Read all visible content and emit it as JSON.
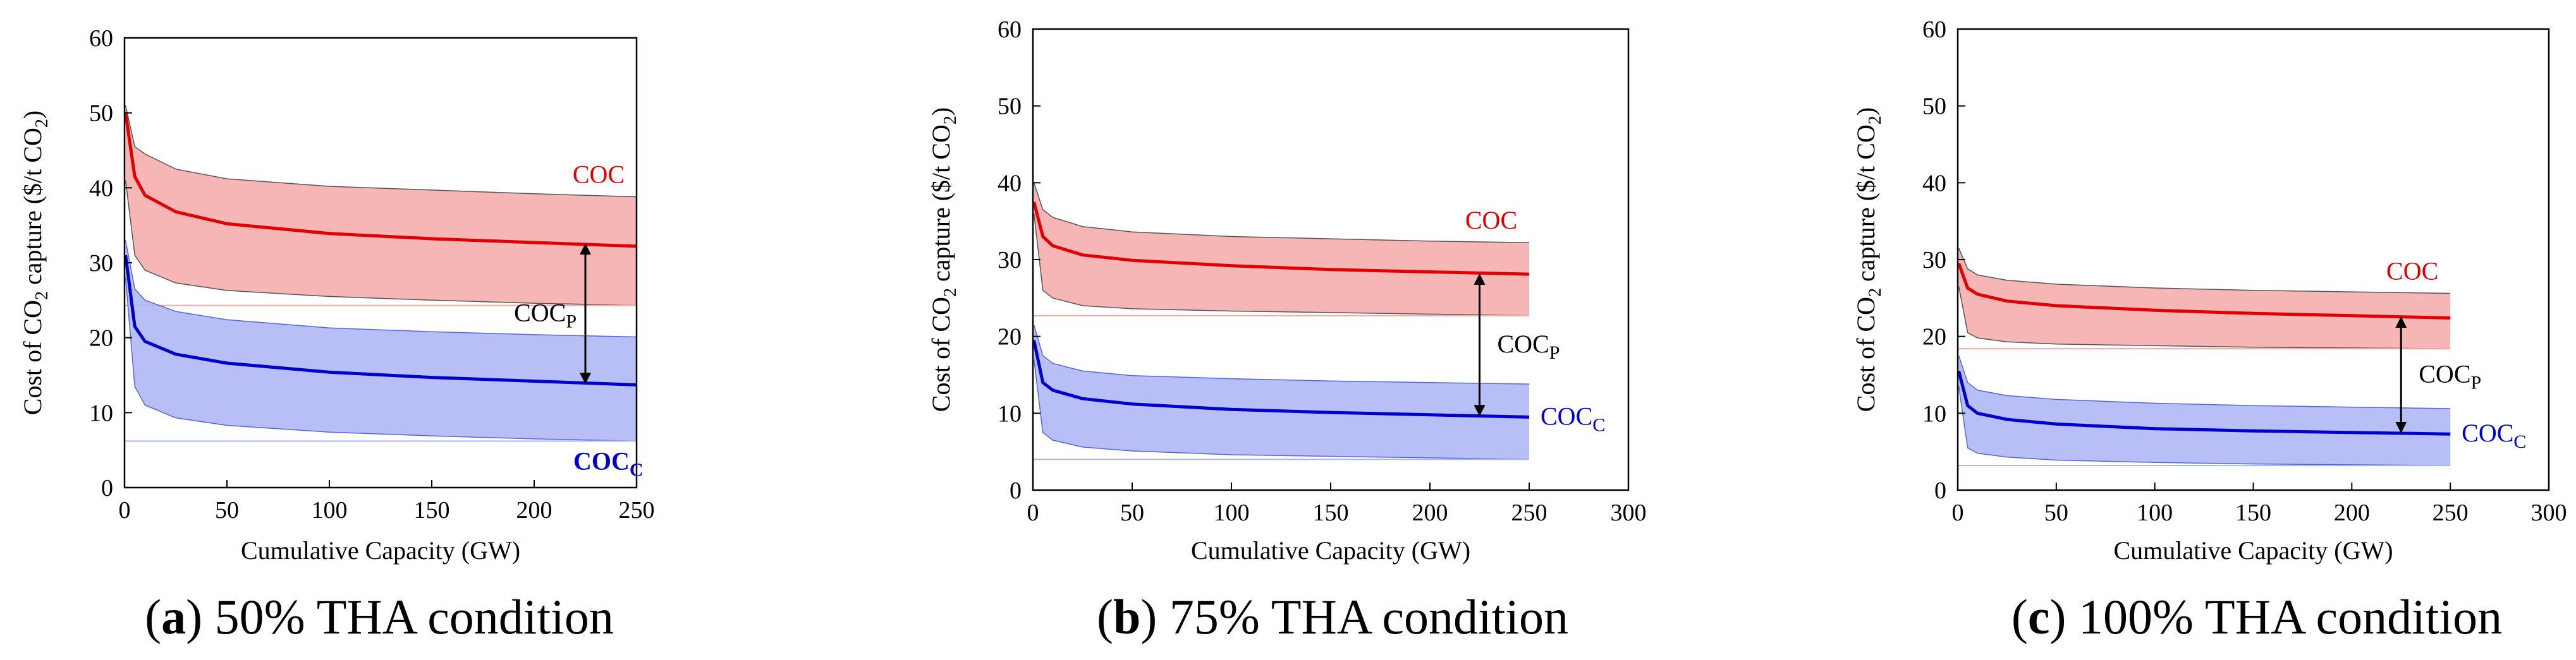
{
  "colors": {
    "coc_line": "#e00000",
    "coc_band": "#f4a9a8",
    "coc_band_edge": "#555555",
    "cocc_line": "#0000cc",
    "cocc_band": "#aab4f4",
    "cocc_band_edge": "#5566dd",
    "arrow": "#000000"
  },
  "chart_data": [
    {
      "type": "line",
      "caption": {
        "letter": "a",
        "text": " 50% THA condition"
      },
      "xlabel": "Cumulative Capacity (GW)",
      "ylabel": "Cost of CO2 capture ($/t CO2)",
      "xlim": [
        0,
        250
      ],
      "ylim": [
        0,
        60
      ],
      "xticks": [
        "0",
        "50",
        "100",
        "150",
        "200",
        "250"
      ],
      "yticks": [
        "0",
        "10",
        "20",
        "30",
        "40",
        "50",
        "60"
      ],
      "series": [
        {
          "name": "COC",
          "subscript": "",
          "bold": false,
          "x": [
            0.5,
            5,
            10,
            25,
            50,
            100,
            150,
            200,
            250
          ],
          "values": [
            50.0,
            41.5,
            39.0,
            36.8,
            35.2,
            33.9,
            33.2,
            32.7,
            32.2
          ],
          "upper": [
            51.0,
            45.5,
            44.5,
            42.5,
            41.2,
            40.2,
            39.7,
            39.2,
            38.8
          ],
          "lower": [
            41.0,
            31.0,
            29.0,
            27.3,
            26.3,
            25.5,
            25.0,
            24.6,
            24.3
          ]
        },
        {
          "name": "COC",
          "subscript": "C",
          "bold": true,
          "x": [
            0.5,
            5,
            10,
            25,
            50,
            100,
            150,
            200,
            250
          ],
          "values": [
            31.0,
            21.5,
            19.5,
            17.8,
            16.6,
            15.4,
            14.7,
            14.2,
            13.7
          ],
          "upper": [
            33.0,
            26.5,
            25.0,
            23.5,
            22.4,
            21.3,
            20.8,
            20.4,
            20.1
          ],
          "lower": [
            28.0,
            13.5,
            11.0,
            9.3,
            8.3,
            7.4,
            6.9,
            6.5,
            6.2
          ]
        }
      ],
      "annotation": {
        "text": "COC",
        "subscript": "P",
        "x": 225,
        "y_from": 32.6,
        "y_to": 13.8
      }
    },
    {
      "type": "line",
      "caption": {
        "letter": "b",
        "text": " 75% THA condition"
      },
      "xlabel": "Cumulative Capacity (GW)",
      "ylabel": "Cost of CO2 capture ($/t CO2)",
      "xlim": [
        0,
        300
      ],
      "ylim": [
        0,
        60
      ],
      "xticks": [
        "0",
        "50",
        "100",
        "150",
        "200",
        "250",
        "300"
      ],
      "yticks": [
        "0",
        "10",
        "20",
        "30",
        "40",
        "50",
        "60"
      ],
      "series": [
        {
          "name": "COC",
          "subscript": "",
          "bold": false,
          "x": [
            0.5,
            5,
            10,
            25,
            50,
            100,
            150,
            200,
            250
          ],
          "values": [
            37.5,
            33.0,
            31.8,
            30.6,
            29.9,
            29.2,
            28.7,
            28.4,
            28.1
          ],
          "upper": [
            40.0,
            36.5,
            35.5,
            34.3,
            33.6,
            33.0,
            32.7,
            32.4,
            32.2
          ],
          "lower": [
            36.0,
            26.0,
            25.0,
            24.0,
            23.6,
            23.3,
            23.1,
            22.9,
            22.7
          ]
        },
        {
          "name": "COC",
          "subscript": "C",
          "bold": false,
          "x": [
            0.5,
            5,
            10,
            25,
            50,
            100,
            150,
            200,
            250
          ],
          "values": [
            19.5,
            14.0,
            13.0,
            11.9,
            11.2,
            10.5,
            10.1,
            9.8,
            9.5
          ],
          "upper": [
            21.5,
            17.5,
            16.5,
            15.5,
            14.9,
            14.5,
            14.2,
            14.0,
            13.8
          ],
          "lower": [
            17.0,
            7.5,
            6.5,
            5.6,
            5.1,
            4.6,
            4.4,
            4.2,
            4.0
          ]
        }
      ],
      "annotation": {
        "text": "COC",
        "subscript": "P",
        "x": 225,
        "y_from": 28.2,
        "y_to": 9.6
      }
    },
    {
      "type": "line",
      "caption": {
        "letter": "c",
        "text": " 100% THA condition"
      },
      "xlabel": "Cumulative Capacity (GW)",
      "ylabel": "Cost of CO2 capture ($/t CO2)",
      "xlim": [
        0,
        300
      ],
      "ylim": [
        0,
        60
      ],
      "xticks": [
        "0",
        "50",
        "100",
        "150",
        "200",
        "250",
        "300"
      ],
      "yticks": [
        "0",
        "10",
        "20",
        "30",
        "40",
        "50",
        "60"
      ],
      "series": [
        {
          "name": "COC",
          "subscript": "",
          "bold": false,
          "x": [
            0.5,
            5,
            10,
            25,
            50,
            100,
            150,
            200,
            250
          ],
          "values": [
            29.5,
            26.3,
            25.5,
            24.6,
            24.0,
            23.4,
            23.0,
            22.7,
            22.4
          ],
          "upper": [
            31.5,
            28.8,
            28.0,
            27.3,
            26.8,
            26.3,
            26.0,
            25.8,
            25.6
          ],
          "lower": [
            26.5,
            20.5,
            19.8,
            19.3,
            19.0,
            18.8,
            18.6,
            18.5,
            18.4
          ]
        },
        {
          "name": "COC",
          "subscript": "C",
          "bold": false,
          "x": [
            0.5,
            5,
            10,
            25,
            50,
            100,
            150,
            200,
            250
          ],
          "values": [
            15.5,
            11.0,
            10.0,
            9.2,
            8.6,
            8.0,
            7.7,
            7.5,
            7.3
          ],
          "upper": [
            17.5,
            14.0,
            13.0,
            12.3,
            11.8,
            11.3,
            11.0,
            10.8,
            10.6
          ],
          "lower": [
            13.5,
            5.5,
            4.8,
            4.3,
            3.9,
            3.6,
            3.4,
            3.3,
            3.2
          ]
        }
      ],
      "annotation": {
        "text": "COC",
        "subscript": "P",
        "x": 225,
        "y_from": 22.6,
        "y_to": 7.4
      }
    }
  ]
}
